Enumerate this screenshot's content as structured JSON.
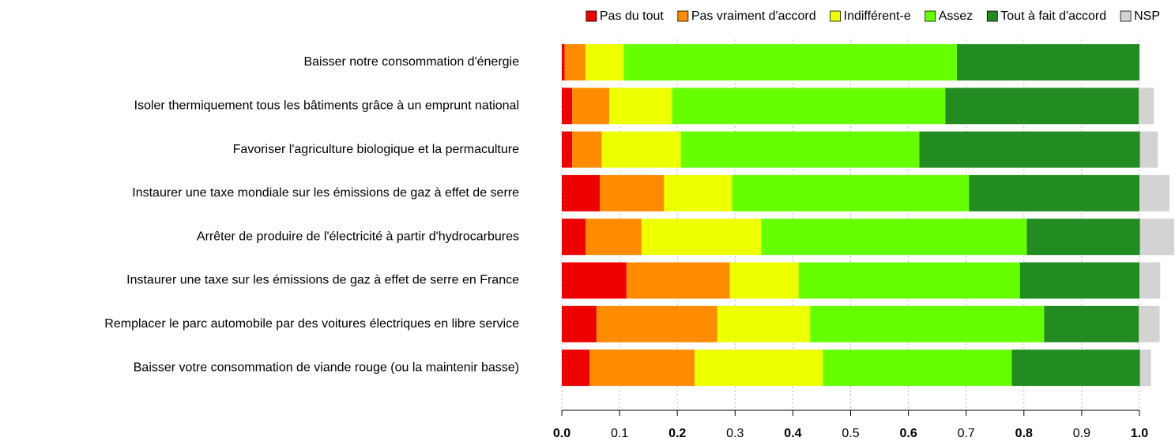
{
  "chart_data": {
    "type": "stacked-barh",
    "categories": [
      "Baisser notre consommation d'énergie",
      "Isoler thermiquement tous les bâtiments grâce à un emprunt national",
      "Favoriser l'agriculture biologique et la permaculture",
      "Instaurer une taxe mondiale sur les émissions de gaz à effet de serre",
      "Arrêter de produire de l'électricité à partir d'hydrocarbures",
      "Instaurer une taxe sur les émissions de gaz à effet de serre en France",
      "Remplacer le parc automobile par des voitures électriques en libre service",
      "Baisser votre consommation de viande rouge (ou la maintenir basse)"
    ],
    "series": [
      {
        "name": "Pas du tout",
        "color": "#ee0000",
        "values": [
          0.005,
          0.018,
          0.018,
          0.066,
          0.041,
          0.112,
          0.06,
          0.048
        ]
      },
      {
        "name": "Pas vraiment d'accord",
        "color": "#ff8c00",
        "values": [
          0.036,
          0.064,
          0.051,
          0.111,
          0.097,
          0.179,
          0.209,
          0.182
        ]
      },
      {
        "name": "Indifférent-e",
        "color": "#eeff00",
        "values": [
          0.066,
          0.109,
          0.137,
          0.118,
          0.207,
          0.119,
          0.161,
          0.222
        ]
      },
      {
        "name": "Assez",
        "color": "#66ff00",
        "values": [
          0.577,
          0.473,
          0.413,
          0.41,
          0.46,
          0.383,
          0.405,
          0.327
        ]
      },
      {
        "name": "Tout à fait d'accord",
        "color": "#228b22",
        "values": [
          0.316,
          0.335,
          0.382,
          0.295,
          0.196,
          0.207,
          0.164,
          0.222
        ]
      },
      {
        "name": "NSP",
        "color": "#d3d3d3",
        "values": [
          0,
          0.026,
          0.031,
          0.052,
          0.062,
          0.036,
          0.036,
          0.019
        ]
      }
    ],
    "xlim": [
      0,
      1.06
    ],
    "xticks": [
      {
        "value": 0,
        "label": "0.0"
      },
      0.1,
      0.2,
      0.3,
      0.4,
      0.5,
      0.6,
      0.7,
      0.8,
      0.9,
      {
        "value": 1,
        "label": "1.0"
      }
    ],
    "grid": true,
    "legend": "top"
  }
}
